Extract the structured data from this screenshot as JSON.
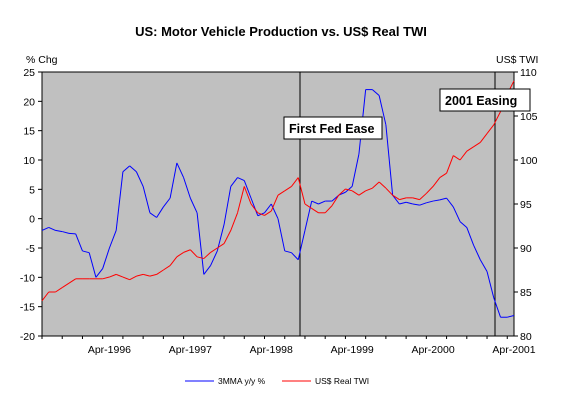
{
  "chart_data": {
    "type": "line",
    "title": "US: Motor Vehicle Production vs. US$ Real TWI",
    "left_axis": {
      "label": "% Chg",
      "min": -20,
      "max": 25,
      "ticks": [
        -20,
        -15,
        -10,
        -5,
        0,
        5,
        10,
        15,
        20,
        25
      ]
    },
    "right_axis": {
      "label": "US$ TWI",
      "min": 80,
      "max": 110,
      "ticks": [
        80,
        85,
        90,
        95,
        100,
        105,
        110
      ]
    },
    "x_ticks": [
      "Apr-1996",
      "Apr-1997",
      "Apr-1998",
      "Apr-1999",
      "Apr-2000",
      "Apr-2001"
    ],
    "grid": false,
    "legend_position": "bottom",
    "series": [
      {
        "name": "3MMA y/y %",
        "axis": "left",
        "color": "#0000ff",
        "values": [
          -2,
          -1.5,
          -2,
          -2.2,
          -2.5,
          -2.6,
          -5.5,
          -5.8,
          -10,
          -8.5,
          -5,
          -2,
          8,
          9,
          8,
          5.5,
          1,
          0.2,
          2,
          3.5,
          9.5,
          7,
          3.5,
          1,
          -9.5,
          -8,
          -5.5,
          -1,
          5.5,
          7,
          6.5,
          3.5,
          0.5,
          1,
          2.5,
          0,
          -5.5,
          -5.8,
          -7,
          -2,
          3,
          2.5,
          3,
          3,
          4,
          4.5,
          5.5,
          11,
          22,
          22,
          21,
          16,
          4,
          2.5,
          2.8,
          2.5,
          2.3,
          2.7,
          3,
          3.2,
          3.5,
          2,
          -0.5,
          -1.5,
          -4.5,
          -7,
          -9,
          -13.5,
          -16.8,
          -16.8,
          -16.5
        ]
      },
      {
        "name": "US$ Real TWI",
        "axis": "right",
        "color": "#ff0000",
        "values": [
          84,
          85,
          85,
          85.5,
          86,
          86.5,
          86.5,
          86.5,
          86.5,
          86.5,
          86.7,
          87,
          86.7,
          86.4,
          86.8,
          87,
          86.8,
          87,
          87.5,
          88,
          89,
          89.5,
          89.8,
          89,
          88.8,
          89.5,
          90,
          90.5,
          92,
          94,
          97,
          95,
          94,
          93.7,
          94.2,
          96,
          96.5,
          97,
          98,
          95,
          94.5,
          94,
          94,
          94.8,
          96,
          96.7,
          96.5,
          96,
          96.5,
          96.8,
          97.5,
          96.8,
          96,
          95.5,
          95.7,
          95.7,
          95.5,
          96.2,
          97,
          98,
          98.5,
          100.5,
          100,
          101,
          101.5,
          102,
          103,
          104,
          105.5,
          107.5,
          109
        ]
      }
    ],
    "annotations": [
      "First Fed Ease",
      "2001 Easing"
    ]
  }
}
